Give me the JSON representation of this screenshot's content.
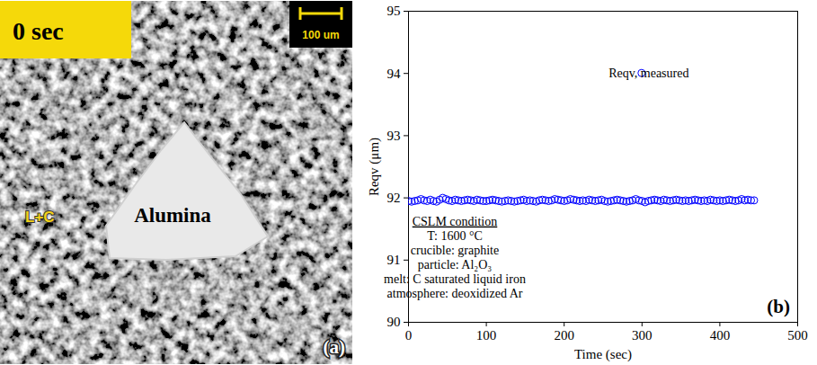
{
  "micrograph": {
    "time_label": "0 sec",
    "scale_bar": "100 um",
    "particle_label": "Alumina",
    "melt_label": "L+C",
    "panel_label": "(a)"
  },
  "chart_data": {
    "type": "scatter",
    "panel_label": "(b)",
    "xlabel": "Time (sec)",
    "ylabel": "Reqv (μm)",
    "xlim": [
      0,
      500
    ],
    "xticks": [
      0,
      100,
      200,
      300,
      400,
      500
    ],
    "ylim": [
      90,
      95
    ],
    "yticks": [
      90,
      91,
      92,
      93,
      94,
      95
    ],
    "x": [
      0,
      4,
      8,
      12,
      16,
      20,
      24,
      28,
      32,
      36,
      40,
      44,
      48,
      52,
      56,
      60,
      64,
      68,
      72,
      76,
      80,
      84,
      88,
      92,
      96,
      100,
      104,
      108,
      112,
      116,
      120,
      124,
      128,
      132,
      136,
      140,
      144,
      148,
      152,
      156,
      160,
      164,
      168,
      172,
      176,
      180,
      184,
      188,
      192,
      196,
      200,
      204,
      208,
      212,
      216,
      220,
      224,
      228,
      232,
      236,
      240,
      244,
      248,
      252,
      256,
      260,
      264,
      268,
      272,
      276,
      280,
      284,
      288,
      292,
      296,
      300,
      304,
      308,
      312,
      316,
      320,
      324,
      328,
      332,
      336,
      340,
      344,
      348,
      352,
      356,
      360,
      364,
      368,
      372,
      376,
      380,
      384,
      388,
      392,
      396,
      400,
      404,
      408,
      412,
      416,
      420,
      424,
      428,
      432,
      436,
      440,
      444
    ],
    "series": [
      {
        "name": "Reqv, measured",
        "color": "#0000ff",
        "marker": "circle",
        "values": [
          91.95,
          91.94,
          91.95,
          91.96,
          91.98,
          91.96,
          91.95,
          91.97,
          91.95,
          91.94,
          91.97,
          92.0,
          91.98,
          91.96,
          91.95,
          91.97,
          91.96,
          91.95,
          91.96,
          91.97,
          91.96,
          91.95,
          91.97,
          91.96,
          91.95,
          91.95,
          91.96,
          91.97,
          91.96,
          91.95,
          91.94,
          91.95,
          91.96,
          91.95,
          91.94,
          91.95,
          91.96,
          91.97,
          91.95,
          91.96,
          91.95,
          91.94,
          91.96,
          91.97,
          91.96,
          91.95,
          91.96,
          91.98,
          91.97,
          91.96,
          91.95,
          91.96,
          91.98,
          91.97,
          91.96,
          91.95,
          91.96,
          91.95,
          91.97,
          91.96,
          91.95,
          91.96,
          91.97,
          91.95,
          91.94,
          91.95,
          91.96,
          91.97,
          91.96,
          91.95,
          91.94,
          91.95,
          91.96,
          91.98,
          91.96,
          91.95,
          91.93,
          91.95,
          91.96,
          91.97,
          91.96,
          91.95,
          91.97,
          91.96,
          91.95,
          91.96,
          91.97,
          91.96,
          91.95,
          91.96,
          91.95,
          91.96,
          91.97,
          91.96,
          91.95,
          91.96,
          91.95,
          91.97,
          91.96,
          91.95,
          91.96,
          91.95,
          91.96,
          91.97,
          91.96,
          91.95,
          91.96,
          91.98,
          91.96,
          91.97,
          91.96,
          91.96
        ]
      }
    ],
    "legend": "top right",
    "annotations": [
      "CSLM condition",
      "T: 1600 °C",
      "crucible: graphite",
      "particle: Al₂O₃",
      "melt: C saturated liquid iron",
      "atmosphere: deoxidized Ar"
    ]
  }
}
